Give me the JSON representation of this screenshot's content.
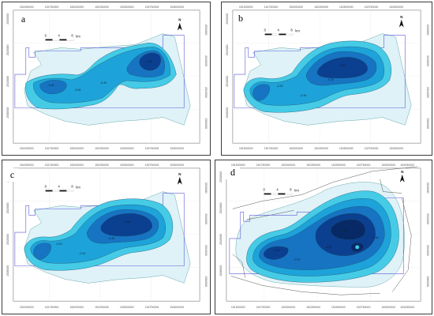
{
  "panels": [
    {
      "id": "a",
      "label": "a"
    },
    {
      "id": "b",
      "label": "b"
    },
    {
      "id": "c",
      "label": "c"
    },
    {
      "id": "d",
      "label": "d"
    }
  ],
  "scale_bar": {
    "ticks": [
      "0",
      "4",
      "8"
    ],
    "unit": "km"
  },
  "north_arrow": {
    "label": "N"
  },
  "x_ticks": [
    "151500000",
    "151750000",
    "152000000",
    "152250000",
    "152500000",
    "152750000",
    "153000000",
    "153250000"
  ],
  "y_ticks": [
    "2530000",
    "2520000",
    "2510000",
    "2500000",
    "2490000"
  ],
  "contour_labels": {
    "a": [
      "-0.10",
      "-0.20",
      "-0.30",
      "-0.40"
    ],
    "b": [
      "-0.10",
      "-0.20",
      "-0.30",
      "-0.40"
    ],
    "c": [
      "-0.10",
      "-0.20",
      "-0.30",
      "-0.40"
    ],
    "d": [
      "-0.10",
      "-0.20",
      "-0.30",
      "-0.40",
      "-0.50"
    ]
  },
  "colors": {
    "basin": "#dff2f8",
    "level1": "#45cbe6",
    "level2": "#1da3d9",
    "level3": "#1774c2",
    "level4": "#0b3f8f",
    "level5": "#072a66",
    "boundary": "#5b5bd6",
    "road": "#555555",
    "frame": "#3a3a3a"
  }
}
